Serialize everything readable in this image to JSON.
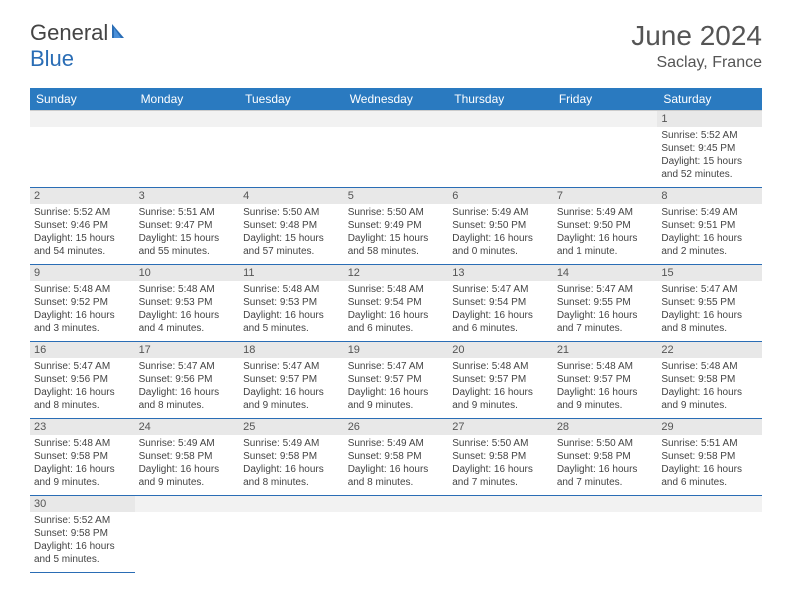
{
  "logo": {
    "text_general": "General",
    "text_blue": "Blue"
  },
  "title": "June 2024",
  "location": "Saclay, France",
  "colors": {
    "header_bg": "#2a7ac0",
    "header_text": "#ffffff",
    "date_row_bg": "#e8e8e8",
    "border": "#2a6db5",
    "text": "#444444"
  },
  "day_names": [
    "Sunday",
    "Monday",
    "Tuesday",
    "Wednesday",
    "Thursday",
    "Friday",
    "Saturday"
  ],
  "weeks": [
    [
      null,
      null,
      null,
      null,
      null,
      null,
      {
        "d": "1",
        "sr": "Sunrise: 5:52 AM",
        "ss": "Sunset: 9:45 PM",
        "dl1": "Daylight: 15 hours",
        "dl2": "and 52 minutes."
      }
    ],
    [
      {
        "d": "2",
        "sr": "Sunrise: 5:52 AM",
        "ss": "Sunset: 9:46 PM",
        "dl1": "Daylight: 15 hours",
        "dl2": "and 54 minutes."
      },
      {
        "d": "3",
        "sr": "Sunrise: 5:51 AM",
        "ss": "Sunset: 9:47 PM",
        "dl1": "Daylight: 15 hours",
        "dl2": "and 55 minutes."
      },
      {
        "d": "4",
        "sr": "Sunrise: 5:50 AM",
        "ss": "Sunset: 9:48 PM",
        "dl1": "Daylight: 15 hours",
        "dl2": "and 57 minutes."
      },
      {
        "d": "5",
        "sr": "Sunrise: 5:50 AM",
        "ss": "Sunset: 9:49 PM",
        "dl1": "Daylight: 15 hours",
        "dl2": "and 58 minutes."
      },
      {
        "d": "6",
        "sr": "Sunrise: 5:49 AM",
        "ss": "Sunset: 9:50 PM",
        "dl1": "Daylight: 16 hours",
        "dl2": "and 0 minutes."
      },
      {
        "d": "7",
        "sr": "Sunrise: 5:49 AM",
        "ss": "Sunset: 9:50 PM",
        "dl1": "Daylight: 16 hours",
        "dl2": "and 1 minute."
      },
      {
        "d": "8",
        "sr": "Sunrise: 5:49 AM",
        "ss": "Sunset: 9:51 PM",
        "dl1": "Daylight: 16 hours",
        "dl2": "and 2 minutes."
      }
    ],
    [
      {
        "d": "9",
        "sr": "Sunrise: 5:48 AM",
        "ss": "Sunset: 9:52 PM",
        "dl1": "Daylight: 16 hours",
        "dl2": "and 3 minutes."
      },
      {
        "d": "10",
        "sr": "Sunrise: 5:48 AM",
        "ss": "Sunset: 9:53 PM",
        "dl1": "Daylight: 16 hours",
        "dl2": "and 4 minutes."
      },
      {
        "d": "11",
        "sr": "Sunrise: 5:48 AM",
        "ss": "Sunset: 9:53 PM",
        "dl1": "Daylight: 16 hours",
        "dl2": "and 5 minutes."
      },
      {
        "d": "12",
        "sr": "Sunrise: 5:48 AM",
        "ss": "Sunset: 9:54 PM",
        "dl1": "Daylight: 16 hours",
        "dl2": "and 6 minutes."
      },
      {
        "d": "13",
        "sr": "Sunrise: 5:47 AM",
        "ss": "Sunset: 9:54 PM",
        "dl1": "Daylight: 16 hours",
        "dl2": "and 6 minutes."
      },
      {
        "d": "14",
        "sr": "Sunrise: 5:47 AM",
        "ss": "Sunset: 9:55 PM",
        "dl1": "Daylight: 16 hours",
        "dl2": "and 7 minutes."
      },
      {
        "d": "15",
        "sr": "Sunrise: 5:47 AM",
        "ss": "Sunset: 9:55 PM",
        "dl1": "Daylight: 16 hours",
        "dl2": "and 8 minutes."
      }
    ],
    [
      {
        "d": "16",
        "sr": "Sunrise: 5:47 AM",
        "ss": "Sunset: 9:56 PM",
        "dl1": "Daylight: 16 hours",
        "dl2": "and 8 minutes."
      },
      {
        "d": "17",
        "sr": "Sunrise: 5:47 AM",
        "ss": "Sunset: 9:56 PM",
        "dl1": "Daylight: 16 hours",
        "dl2": "and 8 minutes."
      },
      {
        "d": "18",
        "sr": "Sunrise: 5:47 AM",
        "ss": "Sunset: 9:57 PM",
        "dl1": "Daylight: 16 hours",
        "dl2": "and 9 minutes."
      },
      {
        "d": "19",
        "sr": "Sunrise: 5:47 AM",
        "ss": "Sunset: 9:57 PM",
        "dl1": "Daylight: 16 hours",
        "dl2": "and 9 minutes."
      },
      {
        "d": "20",
        "sr": "Sunrise: 5:48 AM",
        "ss": "Sunset: 9:57 PM",
        "dl1": "Daylight: 16 hours",
        "dl2": "and 9 minutes."
      },
      {
        "d": "21",
        "sr": "Sunrise: 5:48 AM",
        "ss": "Sunset: 9:57 PM",
        "dl1": "Daylight: 16 hours",
        "dl2": "and 9 minutes."
      },
      {
        "d": "22",
        "sr": "Sunrise: 5:48 AM",
        "ss": "Sunset: 9:58 PM",
        "dl1": "Daylight: 16 hours",
        "dl2": "and 9 minutes."
      }
    ],
    [
      {
        "d": "23",
        "sr": "Sunrise: 5:48 AM",
        "ss": "Sunset: 9:58 PM",
        "dl1": "Daylight: 16 hours",
        "dl2": "and 9 minutes."
      },
      {
        "d": "24",
        "sr": "Sunrise: 5:49 AM",
        "ss": "Sunset: 9:58 PM",
        "dl1": "Daylight: 16 hours",
        "dl2": "and 9 minutes."
      },
      {
        "d": "25",
        "sr": "Sunrise: 5:49 AM",
        "ss": "Sunset: 9:58 PM",
        "dl1": "Daylight: 16 hours",
        "dl2": "and 8 minutes."
      },
      {
        "d": "26",
        "sr": "Sunrise: 5:49 AM",
        "ss": "Sunset: 9:58 PM",
        "dl1": "Daylight: 16 hours",
        "dl2": "and 8 minutes."
      },
      {
        "d": "27",
        "sr": "Sunrise: 5:50 AM",
        "ss": "Sunset: 9:58 PM",
        "dl1": "Daylight: 16 hours",
        "dl2": "and 7 minutes."
      },
      {
        "d": "28",
        "sr": "Sunrise: 5:50 AM",
        "ss": "Sunset: 9:58 PM",
        "dl1": "Daylight: 16 hours",
        "dl2": "and 7 minutes."
      },
      {
        "d": "29",
        "sr": "Sunrise: 5:51 AM",
        "ss": "Sunset: 9:58 PM",
        "dl1": "Daylight: 16 hours",
        "dl2": "and 6 minutes."
      }
    ],
    [
      {
        "d": "30",
        "sr": "Sunrise: 5:52 AM",
        "ss": "Sunset: 9:58 PM",
        "dl1": "Daylight: 16 hours",
        "dl2": "and 5 minutes."
      },
      null,
      null,
      null,
      null,
      null,
      null
    ]
  ]
}
